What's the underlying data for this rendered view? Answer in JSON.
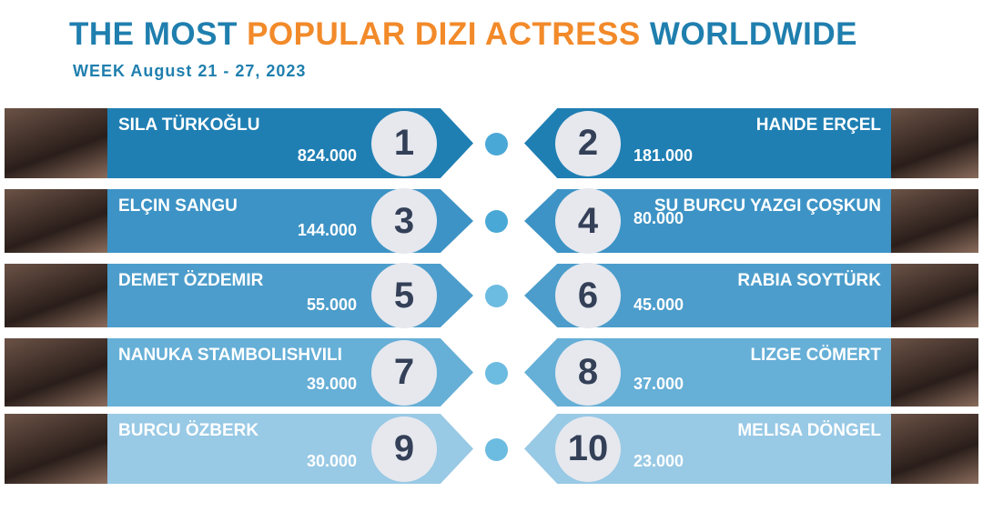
{
  "title": {
    "part1": "THE MOST",
    "part2": "POPULAR DIZI ACTRESS",
    "part3": "WORLDWIDE"
  },
  "subtitle": "WEEK August 21 - 27, 2023",
  "colors": {
    "title_blue": "#1f7fae",
    "title_orange": "#f28a2a",
    "rows": [
      "#1f7fb3",
      "#3d93c5",
      "#4c9dcb",
      "#66afd7",
      "#98c9e5"
    ]
  },
  "rows": [
    {
      "left": {
        "rank": "1",
        "name": "SILA TÜRKOĞLU",
        "value": "824.000"
      },
      "right": {
        "rank": "2",
        "name": "HANDE ERÇEL",
        "value": "181.000"
      }
    },
    {
      "left": {
        "rank": "3",
        "name": "ELÇIN SANGU",
        "value": "144.000"
      },
      "right": {
        "rank": "4",
        "name": "SU BURCU YAZGI ÇOŞKUN",
        "value": "80.000"
      }
    },
    {
      "left": {
        "rank": "5",
        "name": "DEMET ÖZDEMIR",
        "value": "55.000"
      },
      "right": {
        "rank": "6",
        "name": "RABIA SOYTÜRK",
        "value": "45.000"
      }
    },
    {
      "left": {
        "rank": "7",
        "name": "NANUKA STAMBOLISHVILI",
        "value": "39.000"
      },
      "right": {
        "rank": "8",
        "name": "LIZGE CÖMERT",
        "value": "37.000"
      }
    },
    {
      "left": {
        "rank": "9",
        "name": "BURCU ÖZBERK",
        "value": "30.000"
      },
      "right": {
        "rank": "10",
        "name": "MELISA DÖNGEL",
        "value": "23.000"
      }
    }
  ]
}
